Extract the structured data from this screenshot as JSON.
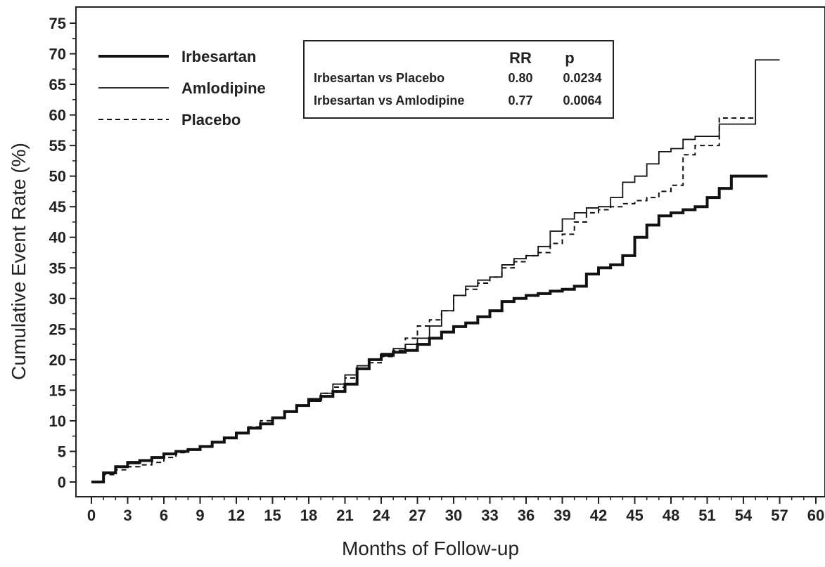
{
  "chart_data": {
    "type": "line",
    "title": "",
    "xlabel": "Months of Follow-up",
    "ylabel": "Cumulative Event Rate (%)",
    "xlim": [
      0,
      60
    ],
    "ylim": [
      0,
      75
    ],
    "xticks": [
      0,
      3,
      6,
      9,
      12,
      15,
      18,
      21,
      24,
      27,
      30,
      33,
      36,
      39,
      42,
      45,
      48,
      51,
      54,
      57,
      60
    ],
    "yticks": [
      0,
      5,
      10,
      15,
      20,
      25,
      30,
      35,
      40,
      45,
      50,
      55,
      60,
      65,
      70,
      75
    ],
    "grid": false,
    "legend": "top-left",
    "series": [
      {
        "name": "Irbesartan",
        "style": "thick-solid",
        "x": [
          0,
          1,
          2,
          3,
          4,
          5,
          6,
          7,
          8,
          9,
          10,
          11,
          12,
          13,
          14,
          15,
          16,
          17,
          18,
          19,
          20,
          21,
          22,
          23,
          24,
          25,
          26,
          27,
          28,
          29,
          30,
          31,
          32,
          33,
          34,
          35,
          36,
          37,
          38,
          39,
          40,
          41,
          42,
          43,
          44,
          45,
          46,
          47,
          48,
          49,
          50,
          51,
          52,
          53,
          54,
          55,
          56
        ],
        "y": [
          0,
          1.5,
          2.5,
          3.2,
          3.5,
          4.0,
          4.6,
          5.0,
          5.3,
          5.8,
          6.5,
          7.2,
          8.0,
          8.8,
          9.5,
          10.5,
          11.5,
          12.5,
          13.5,
          14.0,
          14.8,
          16.0,
          18.5,
          20.0,
          20.7,
          21.2,
          21.5,
          22.5,
          23.5,
          24.5,
          25.4,
          26.0,
          27.0,
          28.0,
          29.5,
          30.0,
          30.5,
          30.8,
          31.2,
          31.5,
          32.0,
          34.0,
          35.0,
          35.5,
          37.0,
          40.0,
          42.0,
          43.5,
          44.0,
          44.5,
          45.0,
          46.5,
          48.0,
          50.0,
          50.0,
          50.0,
          50.0
        ]
      },
      {
        "name": "Amlodipine",
        "style": "thin-solid",
        "x": [
          0,
          1,
          2,
          3,
          4,
          5,
          6,
          7,
          8,
          9,
          10,
          11,
          12,
          13,
          14,
          15,
          16,
          17,
          18,
          19,
          20,
          21,
          22,
          23,
          24,
          25,
          26,
          27,
          28,
          29,
          30,
          31,
          32,
          33,
          34,
          35,
          36,
          37,
          38,
          39,
          40,
          41,
          42,
          43,
          44,
          45,
          46,
          47,
          48,
          49,
          50,
          51,
          52,
          53,
          54,
          55,
          56,
          57
        ],
        "y": [
          0,
          1.5,
          2.4,
          3.0,
          3.5,
          4.0,
          4.6,
          5.0,
          5.3,
          5.8,
          6.5,
          7.2,
          8.0,
          8.8,
          9.5,
          10.5,
          11.5,
          12.5,
          13.2,
          14.5,
          16.0,
          17.5,
          19.0,
          20.0,
          21.0,
          21.8,
          22.5,
          23.5,
          25.5,
          28.0,
          30.5,
          32.0,
          33.0,
          33.5,
          35.5,
          36.5,
          37.0,
          38.5,
          41.0,
          43.0,
          44.0,
          44.8,
          45.0,
          46.5,
          49.0,
          50.0,
          52.0,
          54.0,
          54.5,
          56.0,
          56.5,
          56.5,
          58.5,
          58.5,
          58.5,
          69.0,
          69.0,
          69.0
        ]
      },
      {
        "name": "Placebo",
        "style": "dashed",
        "x": [
          0,
          1,
          2,
          3,
          4,
          5,
          6,
          7,
          8,
          9,
          10,
          11,
          12,
          13,
          14,
          15,
          16,
          17,
          18,
          19,
          20,
          21,
          22,
          23,
          24,
          25,
          26,
          27,
          28,
          29,
          30,
          31,
          32,
          33,
          34,
          35,
          36,
          37,
          38,
          39,
          40,
          41,
          42,
          43,
          44,
          45,
          46,
          47,
          48,
          49,
          50,
          51,
          52,
          53,
          54,
          55
        ],
        "y": [
          0,
          1.2,
          2.0,
          2.5,
          2.8,
          3.2,
          4.0,
          4.8,
          5.3,
          5.8,
          6.5,
          7.2,
          8.0,
          9.0,
          10.0,
          10.5,
          11.5,
          12.5,
          13.5,
          14.5,
          15.5,
          17.0,
          18.5,
          19.5,
          20.5,
          21.5,
          23.5,
          25.5,
          26.5,
          28.0,
          30.5,
          31.5,
          32.5,
          33.5,
          35.0,
          36.0,
          37.0,
          37.5,
          39.0,
          40.5,
          42.5,
          44.0,
          44.5,
          45.0,
          45.5,
          46.0,
          46.5,
          47.5,
          48.5,
          53.5,
          55.0,
          55.0,
          59.5,
          59.5,
          59.5,
          59.5
        ]
      }
    ],
    "stats_table": {
      "header": [
        "",
        "RR",
        "p"
      ],
      "rows": [
        [
          "Irbesartan vs Placebo",
          "0.80",
          "0.0234"
        ],
        [
          "Irbesartan vs Amlodipine",
          "0.77",
          "0.0064"
        ]
      ]
    }
  }
}
